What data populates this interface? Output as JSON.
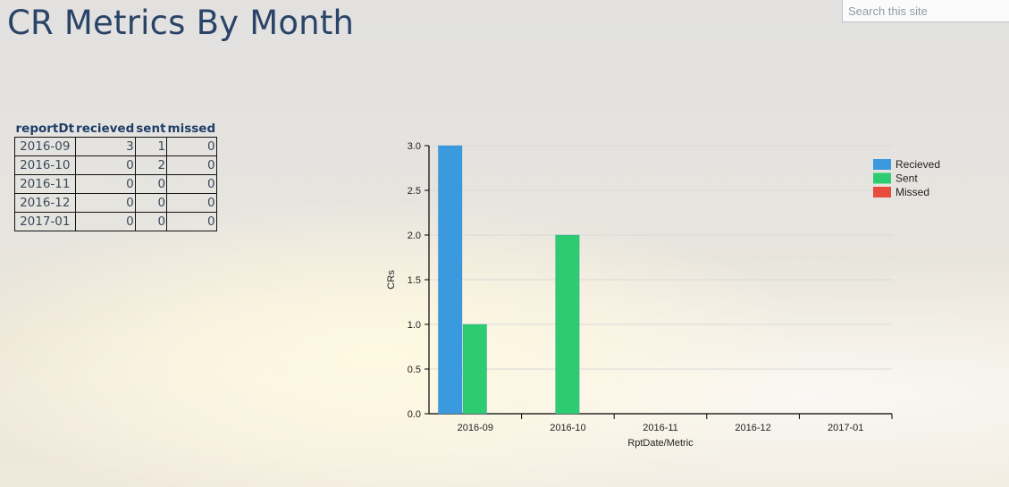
{
  "page": {
    "title": "CR Metrics By Month",
    "search_placeholder": "Search this site"
  },
  "table": {
    "headers": [
      "reportDt",
      "recieved",
      "sent",
      "missed"
    ],
    "rows": [
      [
        "2016-09",
        "3",
        "1",
        "0"
      ],
      [
        "2016-10",
        "0",
        "2",
        "0"
      ],
      [
        "2016-11",
        "0",
        "0",
        "0"
      ],
      [
        "2016-12",
        "0",
        "0",
        "0"
      ],
      [
        "2017-01",
        "0",
        "0",
        "0"
      ]
    ]
  },
  "chart_data": {
    "type": "bar",
    "categories": [
      "2016-09",
      "2016-10",
      "2016-11",
      "2016-12",
      "2017-01"
    ],
    "series": [
      {
        "name": "Recieved",
        "values": [
          3,
          0,
          0,
          0,
          0
        ],
        "color": "#3b99de"
      },
      {
        "name": "Sent",
        "values": [
          1,
          2,
          0,
          0,
          0
        ],
        "color": "#2ecc71"
      },
      {
        "name": "Missed",
        "values": [
          0,
          0,
          0,
          0,
          0
        ],
        "color": "#e74c3c"
      }
    ],
    "xlabel": "RptDate/Metric",
    "ylabel": "CRs",
    "ylim": [
      0,
      3.0
    ],
    "yticks": [
      "0.0",
      "0.5",
      "1.0",
      "1.5",
      "2.0",
      "2.5",
      "3.0"
    ],
    "grid": true,
    "legend": "top-right"
  }
}
